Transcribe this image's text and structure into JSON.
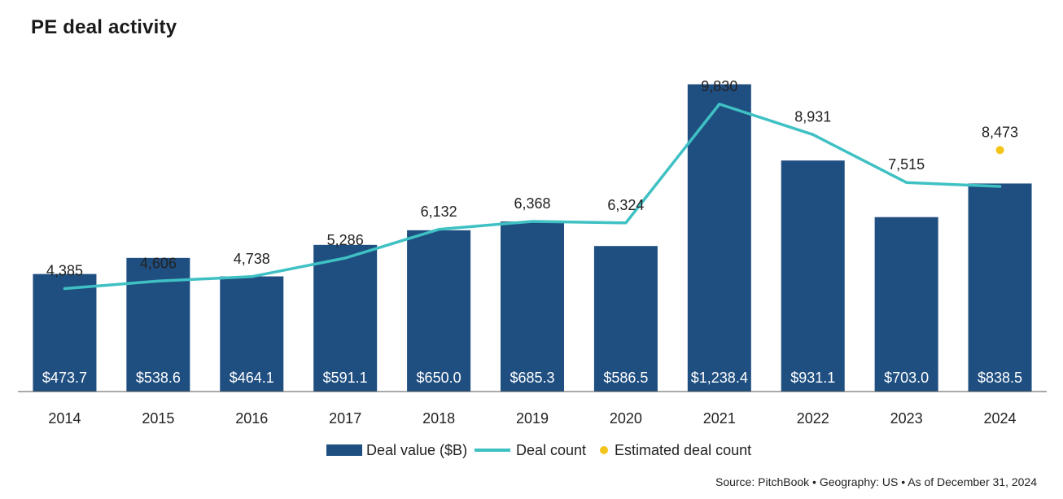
{
  "chart_data": {
    "type": "bar",
    "title": "PE deal activity",
    "categories": [
      "2014",
      "2015",
      "2016",
      "2017",
      "2018",
      "2019",
      "2020",
      "2021",
      "2022",
      "2023",
      "2024"
    ],
    "series": [
      {
        "name": "Deal value ($B)",
        "type": "bar",
        "color": "#1f4e80",
        "values": [
          473.7,
          538.6,
          464.1,
          591.1,
          650.0,
          685.3,
          586.5,
          1238.4,
          931.1,
          703.0,
          838.5
        ],
        "labels": [
          "$473.7",
          "$538.6",
          "$464.1",
          "$591.1",
          "$650.0",
          "$685.3",
          "$586.5",
          "$1,238.4",
          "$931.1",
          "$703.0",
          "$838.5"
        ]
      },
      {
        "name": "Deal count",
        "type": "line",
        "color": "#3fc1c4",
        "values": [
          4385,
          4606,
          4738,
          5286,
          6132,
          6368,
          6324,
          9830,
          8931,
          7515,
          null
        ],
        "labels": [
          "4,385",
          "4,606",
          "4,738",
          "5,286",
          "6,132",
          "6,368",
          "6,324",
          "9,830",
          "8,931",
          "7,515",
          ""
        ]
      },
      {
        "name": "Estimated deal count",
        "type": "scatter",
        "color": "#f2c518",
        "values": [
          null,
          null,
          null,
          null,
          null,
          null,
          null,
          null,
          null,
          null,
          8473
        ],
        "labels": [
          "",
          "",
          "",
          "",
          "",
          "",
          "",
          "",
          "",
          "",
          "8,473"
        ]
      }
    ],
    "line_endpoint_2024": 7400,
    "ylim_value": [
      0,
      1250
    ],
    "ylim_count": [
      0,
      10500
    ],
    "legend_position": "bottom",
    "grid": false
  },
  "footer": {
    "source": "Source: PitchBook  •  Geography: US  •  As of December 31, 2024"
  }
}
